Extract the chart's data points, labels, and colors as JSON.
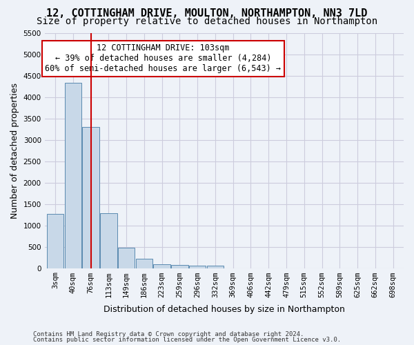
{
  "title_line1": "12, COTTINGHAM DRIVE, MOULTON, NORTHAMPTON, NN3 7LD",
  "title_line2": "Size of property relative to detached houses in Northampton",
  "xlabel": "Distribution of detached houses by size in Northampton",
  "ylabel": "Number of detached properties",
  "bar_values": [
    1270,
    4330,
    3300,
    1280,
    480,
    215,
    90,
    75,
    60,
    55,
    0,
    0,
    0,
    0,
    0,
    0,
    0,
    0,
    0,
    0
  ],
  "bar_labels": [
    "3sqm",
    "40sqm",
    "76sqm",
    "113sqm",
    "149sqm",
    "186sqm",
    "223sqm",
    "259sqm",
    "296sqm",
    "332sqm",
    "369sqm",
    "406sqm",
    "442sqm",
    "479sqm",
    "515sqm",
    "552sqm",
    "589sqm",
    "625sqm",
    "662sqm",
    "698sqm"
  ],
  "bar_color": "#c8d8e8",
  "bar_edge_color": "#5a8ab0",
  "grid_color": "#ccccdd",
  "background_color": "#eef2f8",
  "vline_color": "#cc0000",
  "annotation_text": "12 COTTINGHAM DRIVE: 103sqm\n← 39% of detached houses are smaller (4,284)\n60% of semi-detached houses are larger (6,543) →",
  "annotation_box_color": "#ffffff",
  "annotation_box_edge": "#cc0000",
  "ylim": [
    0,
    5500
  ],
  "yticks": [
    0,
    500,
    1000,
    1500,
    2000,
    2500,
    3000,
    3500,
    4000,
    4500,
    5000,
    5500
  ],
  "footnote1": "Contains HM Land Registry data © Crown copyright and database right 2024.",
  "footnote2": "Contains public sector information licensed under the Open Government Licence v3.0.",
  "title_fontsize": 11,
  "subtitle_fontsize": 10,
  "tick_fontsize": 7.5,
  "label_fontsize": 9
}
